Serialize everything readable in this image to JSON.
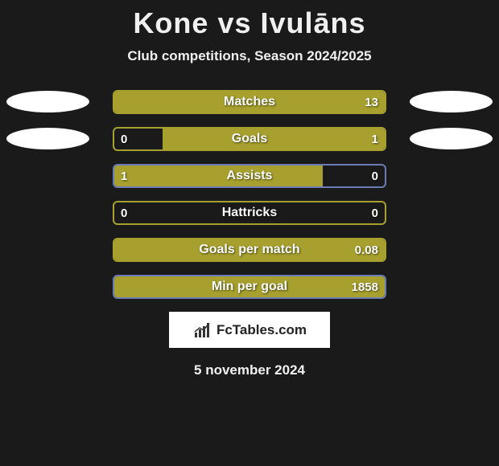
{
  "title": "Kone vs Ivulāns",
  "subtitle": "Club competitions, Season 2024/2025",
  "footer_date": "5 november 2024",
  "brand": {
    "text": "FcTables.com",
    "icon_name": "chart-line-icon"
  },
  "colors": {
    "background": "#1a1a1a",
    "olive": "#a7a02e",
    "border_olive": "#a7a02e",
    "border_blue": "#6b7bb5",
    "ellipse": "#ffffff",
    "text": "#ffffff"
  },
  "layout": {
    "bar_track_width": 340,
    "bar_track_height": 30,
    "ellipse_width": 103,
    "ellipse_height": 27,
    "title_fontsize": 36,
    "subtitle_fontsize": 17,
    "label_fontsize": 16,
    "value_fontsize": 15
  },
  "rows": [
    {
      "label": "Matches",
      "left_value": "",
      "right_value": "13",
      "left_fill_pct": 0,
      "right_fill_pct": 100,
      "fill_side": "right",
      "fill_color": "#a7a02e",
      "border_color": "#a7a02e",
      "show_left_ellipse": true,
      "show_right_ellipse": true
    },
    {
      "label": "Goals",
      "left_value": "0",
      "right_value": "1",
      "left_fill_pct": 0,
      "right_fill_pct": 82,
      "fill_side": "right",
      "fill_color": "#a7a02e",
      "border_color": "#a7a02e",
      "show_left_ellipse": true,
      "show_right_ellipse": true
    },
    {
      "label": "Assists",
      "left_value": "1",
      "right_value": "0",
      "left_fill_pct": 77,
      "right_fill_pct": 0,
      "fill_side": "left",
      "fill_color": "#a7a02e",
      "border_color": "#6b7bb5",
      "show_left_ellipse": false,
      "show_right_ellipse": false
    },
    {
      "label": "Hattricks",
      "left_value": "0",
      "right_value": "0",
      "left_fill_pct": 0,
      "right_fill_pct": 0,
      "fill_side": "none",
      "fill_color": "#a7a02e",
      "border_color": "#a7a02e",
      "show_left_ellipse": false,
      "show_right_ellipse": false
    },
    {
      "label": "Goals per match",
      "left_value": "",
      "right_value": "0.08",
      "left_fill_pct": 0,
      "right_fill_pct": 100,
      "fill_side": "right",
      "fill_color": "#a7a02e",
      "border_color": "#a7a02e",
      "show_left_ellipse": false,
      "show_right_ellipse": false
    },
    {
      "label": "Min per goal",
      "left_value": "",
      "right_value": "1858",
      "left_fill_pct": 0,
      "right_fill_pct": 100,
      "fill_side": "right",
      "fill_color": "#a7a02e",
      "border_color": "#6b7bb5",
      "show_left_ellipse": false,
      "show_right_ellipse": false
    }
  ]
}
